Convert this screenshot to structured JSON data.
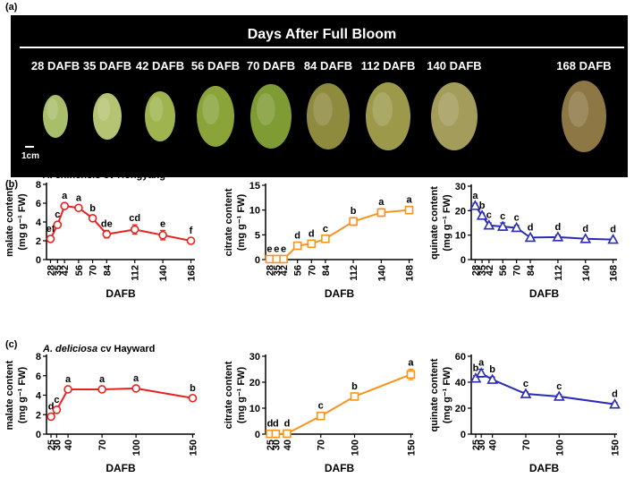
{
  "panel_a": {
    "label": "(a)",
    "title": "Days After Full Bloom",
    "stages": [
      "28 DAFB",
      "35 DAFB",
      "42 DAFB",
      "56 DAFB",
      "70 DAFB",
      "84 DAFB",
      "112 DAFB",
      "140 DAFB",
      "168 DAFB"
    ],
    "scale": "1cm"
  },
  "panel_b": {
    "label": "(b)",
    "species": "A. chinensis",
    "cultivar": "cv Hongyang"
  },
  "panel_c": {
    "label": "(c)",
    "species": "A. deliciosa",
    "cultivar": "cv Hayward"
  },
  "chart_data": [
    {
      "type": "line",
      "ylabel": "malate content",
      "yunit": "(mg g⁻¹ FW)",
      "xlabel": "DAFB",
      "color": "#e8231f",
      "marker": "circle",
      "rotate_xticks": true,
      "x": [
        28,
        35,
        42,
        56,
        70,
        84,
        112,
        140,
        168
      ],
      "xlim": [
        24,
        172
      ],
      "xticks": [
        28,
        35,
        42,
        56,
        70,
        84,
        112,
        140,
        168
      ],
      "ylim": [
        0,
        8
      ],
      "yticks": [
        0,
        2,
        4,
        6,
        8
      ],
      "values": [
        2.2,
        3.7,
        5.7,
        5.5,
        4.4,
        2.7,
        3.2,
        2.6,
        2.0
      ],
      "errors": [
        0.3,
        0.2,
        0.2,
        0.2,
        0.2,
        0.4,
        0.5,
        0.5,
        0.1
      ],
      "letters": [
        "ef",
        "c",
        "a",
        "a",
        "b",
        "de",
        "cd",
        "e",
        "f"
      ]
    },
    {
      "type": "line",
      "ylabel": "citrate content",
      "yunit": "(mg g⁻¹ FW)",
      "xlabel": "DAFB",
      "color": "#f7941d",
      "marker": "square",
      "rotate_xticks": true,
      "x": [
        28,
        35,
        42,
        56,
        70,
        84,
        112,
        140,
        168
      ],
      "xlim": [
        24,
        172
      ],
      "xticks": [
        28,
        35,
        42,
        56,
        70,
        84,
        112,
        140,
        168
      ],
      "ylim": [
        0,
        15
      ],
      "yticks": [
        0,
        5,
        10,
        15
      ],
      "values": [
        0.1,
        0.1,
        0.1,
        2.8,
        3.2,
        4.2,
        7.7,
        9.5,
        10.0
      ],
      "errors": [
        0.1,
        0.1,
        0.1,
        0.3,
        0.4,
        0.4,
        0.8,
        0.8,
        0.4
      ],
      "letters": [
        "e",
        "e",
        "e",
        "d",
        "d",
        "c",
        "b",
        "a",
        "a"
      ]
    },
    {
      "type": "line",
      "ylabel": "quinate content",
      "yunit": "(mg g⁻¹ FW)",
      "xlabel": "DAFB",
      "color": "#2b2bb5",
      "marker": "triangle",
      "rotate_xticks": true,
      "x": [
        28,
        35,
        42,
        56,
        70,
        84,
        112,
        140,
        168
      ],
      "xlim": [
        24,
        172
      ],
      "xticks": [
        28,
        35,
        42,
        56,
        70,
        84,
        112,
        140,
        168
      ],
      "ylim": [
        0,
        30
      ],
      "yticks": [
        0,
        10,
        20,
        30
      ],
      "values": [
        22,
        18,
        14,
        13.5,
        13,
        9,
        9.2,
        8.5,
        8.2
      ],
      "errors": [
        1,
        1,
        1,
        1.5,
        1,
        0.8,
        0.8,
        0.5,
        0.5
      ],
      "letters": [
        "a",
        "b",
        "c",
        "c",
        "c",
        "d",
        "d",
        "d",
        "d"
      ]
    },
    {
      "type": "line",
      "ylabel": "malate content",
      "yunit": "(mg g⁻¹ FW)",
      "xlabel": "DAFB",
      "color": "#e8231f",
      "marker": "circle",
      "rotate_xticks": true,
      "x": [
        25,
        30,
        40,
        70,
        100,
        150
      ],
      "xlim": [
        21,
        152
      ],
      "xticks": [
        25,
        30,
        40,
        70,
        100,
        150
      ],
      "ylim": [
        0,
        8
      ],
      "yticks": [
        0,
        2,
        4,
        6,
        8
      ],
      "values": [
        1.8,
        2.5,
        4.6,
        4.6,
        4.7,
        3.7
      ],
      "errors": [
        0.1,
        0.1,
        0.2,
        0.1,
        0.1,
        0.3
      ],
      "letters": [
        "d",
        "c",
        "a",
        "a",
        "a",
        "b"
      ]
    },
    {
      "type": "line",
      "ylabel": "citrate content",
      "yunit": "(mg g⁻¹ FW)",
      "xlabel": "DAFB",
      "color": "#f7941d",
      "marker": "square",
      "rotate_xticks": true,
      "x": [
        25,
        30,
        40,
        70,
        100,
        150
      ],
      "xlim": [
        21,
        152
      ],
      "xticks": [
        25,
        30,
        40,
        70,
        100,
        150
      ],
      "ylim": [
        0,
        30
      ],
      "yticks": [
        0,
        10,
        20,
        30
      ],
      "values": [
        0.1,
        0.1,
        0.2,
        7,
        14.5,
        23
      ],
      "errors": [
        0.1,
        0.1,
        0.1,
        0.5,
        0.7,
        2
      ],
      "letters": [
        "d",
        "d",
        "d",
        "c",
        "b",
        "a"
      ]
    },
    {
      "type": "line",
      "ylabel": "quinate content",
      "yunit": "(mg g⁻¹ FW)",
      "xlabel": "DAFB",
      "color": "#2b2bb5",
      "marker": "triangle",
      "rotate_xticks": true,
      "x": [
        25,
        30,
        40,
        70,
        100,
        150
      ],
      "xlim": [
        21,
        152
      ],
      "xticks": [
        25,
        30,
        40,
        70,
        100,
        150
      ],
      "ylim": [
        0,
        60
      ],
      "yticks": [
        0,
        20,
        40,
        60
      ],
      "values": [
        43,
        47,
        42,
        31,
        29,
        23
      ],
      "errors": [
        2,
        3,
        2,
        1.5,
        1.5,
        1.5
      ],
      "letters": [
        "b",
        "a",
        "b",
        "c",
        "c",
        "d"
      ]
    }
  ]
}
